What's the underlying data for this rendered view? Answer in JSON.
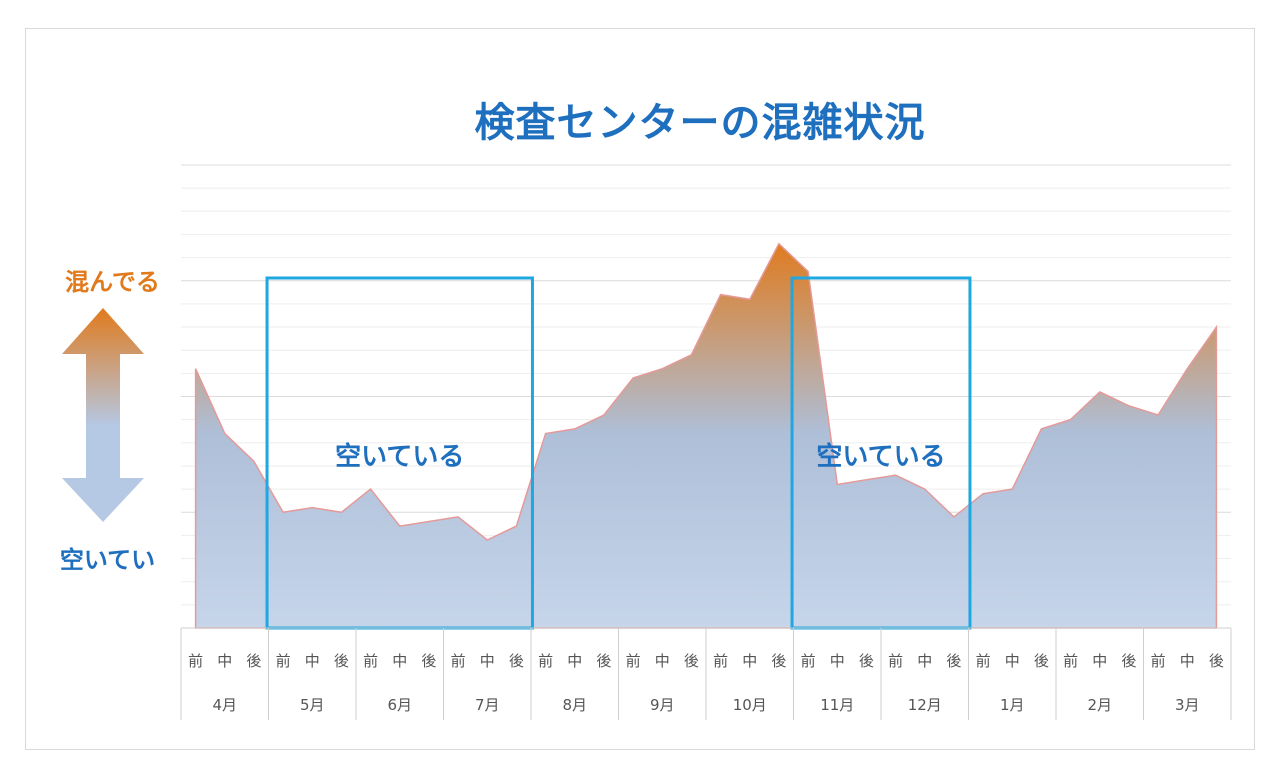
{
  "title": "検査センターの混雑状況",
  "side_labels": {
    "top": "混んでる",
    "bottom": "空いてい"
  },
  "colors": {
    "title": "#1f6fbf",
    "busy": "#e07a1c",
    "highlight_box": "#1ea7e1",
    "area_top": "#e07a1c",
    "area_bottom": "#b5c8e4",
    "area_line": "#e59a9a"
  },
  "chart_data": {
    "type": "area",
    "title": "検査センターの混雑状況",
    "x_sub_labels": [
      "前",
      "中",
      "後"
    ],
    "months": [
      "4月",
      "5月",
      "6月",
      "7月",
      "8月",
      "9月",
      "10月",
      "11月",
      "12月",
      "1月",
      "2月",
      "3月"
    ],
    "series": [
      {
        "values": [
          56,
          42,
          36,
          25,
          26,
          25,
          30,
          22,
          23,
          24,
          19,
          22,
          42,
          43,
          46,
          54,
          56,
          59,
          72,
          71,
          83,
          77,
          31,
          32,
          33,
          30,
          24,
          29,
          30,
          43,
          45,
          51,
          48,
          46,
          56,
          65
        ]
      }
    ],
    "ylim": [
      0,
      100
    ],
    "grid": true,
    "highlight_regions": [
      {
        "label": "空いている",
        "from_month": "5月",
        "to_month": "7月"
      },
      {
        "label": "空いている",
        "from_month": "11月",
        "to_month": "12月"
      }
    ]
  }
}
